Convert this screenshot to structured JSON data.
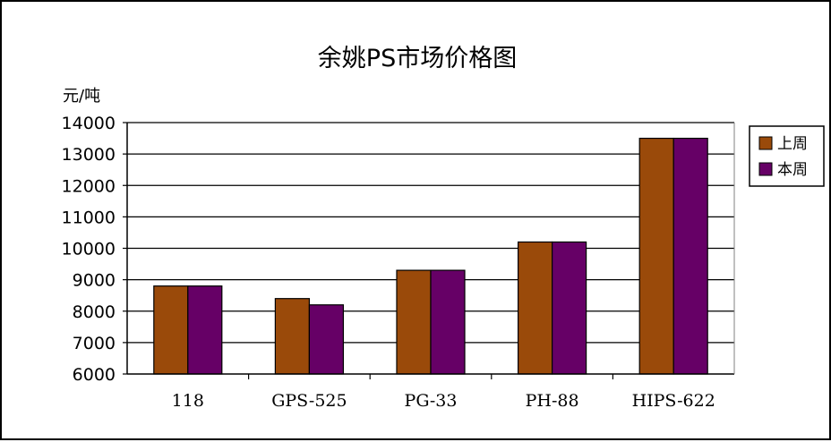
{
  "chart_data": {
    "type": "bar",
    "title": "余姚PS市场价格图",
    "ylabel": "元/吨",
    "xlabel": "",
    "categories": [
      "118",
      "GPS-525",
      "PG-33",
      "PH-88",
      "HIPS-622"
    ],
    "series": [
      {
        "name": "上周",
        "color": "#9a4a0a",
        "values": [
          8800,
          8400,
          9300,
          10200,
          13500
        ]
      },
      {
        "name": "本周",
        "color": "#660066",
        "values": [
          8800,
          8200,
          9300,
          10200,
          13500
        ]
      }
    ],
    "ylim": [
      6000,
      14000
    ],
    "yticks": [
      6000,
      7000,
      8000,
      9000,
      10000,
      11000,
      12000,
      13000,
      14000
    ],
    "grid": true,
    "legend": "right"
  }
}
